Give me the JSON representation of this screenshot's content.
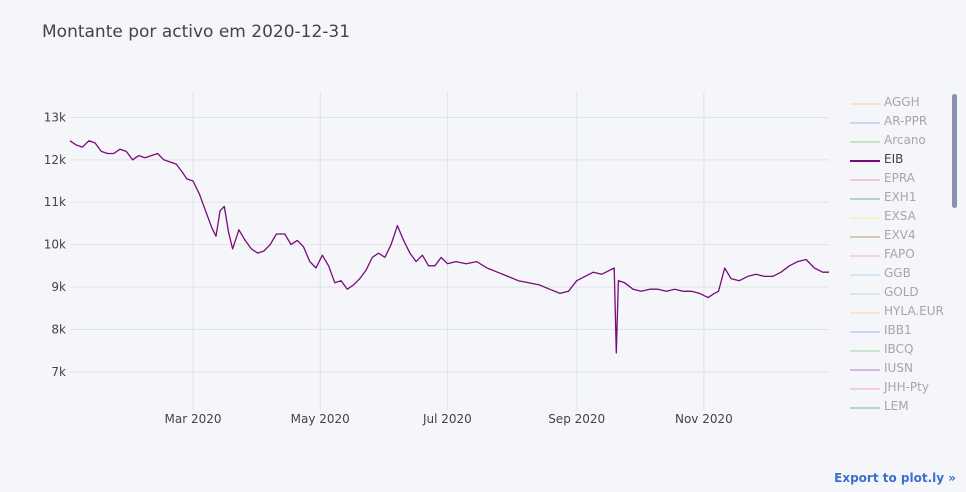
{
  "title": "Montante por activo em 2020-12-31",
  "export_label": "Export to plot.ly »",
  "chart_data": {
    "type": "line",
    "title": "Montante por activo em 2020-12-31",
    "xlabel": "",
    "ylabel": "",
    "x_range": [
      "2020-01-02",
      "2020-12-31"
    ],
    "ylim": [
      6100,
      13600
    ],
    "y_ticks": [
      7000,
      8000,
      9000,
      10000,
      11000,
      12000,
      13000
    ],
    "y_tick_labels": [
      "7k",
      "8k",
      "9k",
      "10k",
      "11k",
      "12k",
      "13k"
    ],
    "x_ticks": [
      "2020-03-01",
      "2020-05-01",
      "2020-07-01",
      "2020-09-01",
      "2020-11-01"
    ],
    "x_tick_labels": [
      "Mar 2020",
      "May 2020",
      "Jul 2020",
      "Sep 2020",
      "Nov 2020"
    ],
    "grid": true,
    "legend_position": "right",
    "series": [
      {
        "name": "EIB",
        "color": "#7a0a7a",
        "x": [
          "2020-01-02",
          "2020-01-05",
          "2020-01-08",
          "2020-01-11",
          "2020-01-14",
          "2020-01-17",
          "2020-01-20",
          "2020-01-23",
          "2020-01-26",
          "2020-01-29",
          "2020-02-01",
          "2020-02-04",
          "2020-02-07",
          "2020-02-10",
          "2020-02-13",
          "2020-02-16",
          "2020-02-19",
          "2020-02-22",
          "2020-02-25",
          "2020-02-27",
          "2020-03-01",
          "2020-03-04",
          "2020-03-07",
          "2020-03-10",
          "2020-03-12",
          "2020-03-14",
          "2020-03-16",
          "2020-03-18",
          "2020-03-20",
          "2020-03-23",
          "2020-03-26",
          "2020-03-29",
          "2020-04-01",
          "2020-04-04",
          "2020-04-07",
          "2020-04-10",
          "2020-04-14",
          "2020-04-17",
          "2020-04-20",
          "2020-04-23",
          "2020-04-26",
          "2020-04-29",
          "2020-05-02",
          "2020-05-05",
          "2020-05-08",
          "2020-05-11",
          "2020-05-14",
          "2020-05-17",
          "2020-05-20",
          "2020-05-23",
          "2020-05-26",
          "2020-05-29",
          "2020-06-01",
          "2020-06-04",
          "2020-06-07",
          "2020-06-10",
          "2020-06-13",
          "2020-06-16",
          "2020-06-19",
          "2020-06-22",
          "2020-06-25",
          "2020-06-28",
          "2020-07-01",
          "2020-07-05",
          "2020-07-10",
          "2020-07-15",
          "2020-07-20",
          "2020-07-25",
          "2020-07-30",
          "2020-08-04",
          "2020-08-09",
          "2020-08-14",
          "2020-08-19",
          "2020-08-24",
          "2020-08-28",
          "2020-09-01",
          "2020-09-05",
          "2020-09-09",
          "2020-09-13",
          "2020-09-17",
          "2020-09-19",
          "2020-09-20",
          "2020-09-21",
          "2020-09-24",
          "2020-09-28",
          "2020-10-02",
          "2020-10-06",
          "2020-10-10",
          "2020-10-14",
          "2020-10-18",
          "2020-10-22",
          "2020-10-26",
          "2020-10-30",
          "2020-11-03",
          "2020-11-06",
          "2020-11-08",
          "2020-11-11",
          "2020-11-14",
          "2020-11-18",
          "2020-11-22",
          "2020-11-26",
          "2020-11-30",
          "2020-12-04",
          "2020-12-08",
          "2020-12-12",
          "2020-12-16",
          "2020-12-20",
          "2020-12-24",
          "2020-12-28",
          "2020-12-31"
        ],
        "y": [
          12450,
          12350,
          12300,
          12450,
          12400,
          12200,
          12150,
          12150,
          12250,
          12200,
          12000,
          12100,
          12050,
          12100,
          12150,
          12000,
          11950,
          11900,
          11700,
          11550,
          11500,
          11200,
          10800,
          10400,
          10200,
          10800,
          10900,
          10300,
          9900,
          10350,
          10100,
          9900,
          9800,
          9850,
          10000,
          10250,
          10250,
          10000,
          10100,
          9950,
          9600,
          9450,
          9750,
          9500,
          9100,
          9150,
          8950,
          9050,
          9200,
          9400,
          9700,
          9800,
          9700,
          10000,
          10450,
          10100,
          9800,
          9600,
          9750,
          9500,
          9500,
          9700,
          9550,
          9600,
          9550,
          9600,
          9450,
          9350,
          9250,
          9150,
          9100,
          9050,
          8950,
          8850,
          8900,
          9150,
          9250,
          9350,
          9300,
          9400,
          9450,
          7450,
          9150,
          9100,
          8950,
          8900,
          8950,
          8950,
          8900,
          8950,
          8900,
          8900,
          8850,
          8750,
          8850,
          8900,
          9450,
          9200,
          9150,
          9250,
          9300,
          9250,
          9250,
          9350,
          9500,
          9600,
          9650,
          9450,
          9350,
          9350
        ]
      }
    ],
    "legend": [
      {
        "name": "AGGH",
        "color": "#f9b77e",
        "visible": false
      },
      {
        "name": "AR-PPR",
        "color": "#6fa4d9",
        "visible": false
      },
      {
        "name": "Arcano",
        "color": "#6ec46e",
        "visible": false
      },
      {
        "name": "EIB",
        "color": "#7a0a7a",
        "visible": true
      },
      {
        "name": "EPRA",
        "color": "#e87a7a",
        "visible": false
      },
      {
        "name": "EXH1",
        "color": "#2e8b9a",
        "visible": false
      },
      {
        "name": "EXSA",
        "color": "#eaea6a",
        "visible": false
      },
      {
        "name": "EXV4",
        "color": "#9c7a3a",
        "visible": false
      },
      {
        "name": "FAPO",
        "color": "#f9a08a",
        "visible": false
      },
      {
        "name": "GGB",
        "color": "#9ec8ea",
        "visible": false
      },
      {
        "name": "GOLD",
        "color": "#a6c8e0",
        "visible": false
      },
      {
        "name": "HYLA.EUR",
        "color": "#f9c08a",
        "visible": false
      },
      {
        "name": "IBB1",
        "color": "#7a9ed0",
        "visible": false
      },
      {
        "name": "IBCQ",
        "color": "#7ec47e",
        "visible": false
      },
      {
        "name": "IUSN",
        "color": "#9a4aa8",
        "visible": false
      },
      {
        "name": "JHH-Pty",
        "color": "#ea8a9a",
        "visible": false
      },
      {
        "name": "LEM",
        "color": "#3a9aa8",
        "visible": false
      }
    ]
  }
}
